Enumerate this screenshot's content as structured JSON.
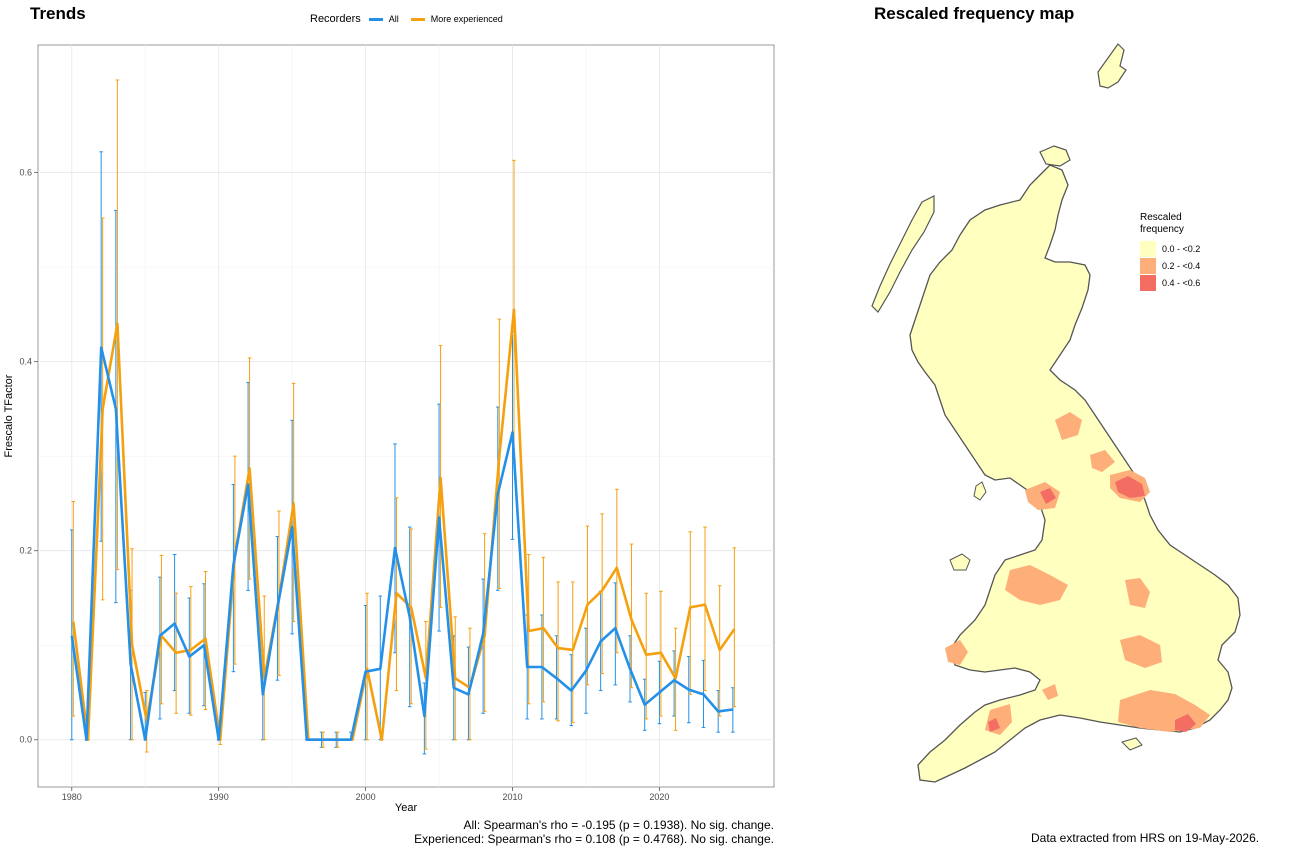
{
  "trends": {
    "title": "Trends",
    "legend_title": "Recorders",
    "caption_line1": "All: Spearman's rho = -0.195 (p = 0.1938). No sig. change.",
    "caption_line2": "Experienced: Spearman's rho = 0.108 (p = 0.4768). No sig. change."
  },
  "map": {
    "title": "Rescaled frequency map",
    "legend_title_line1": "Rescaled",
    "legend_title_line2": "frequency",
    "legend_items": [
      {
        "label": "0.0 - <0.2",
        "color": "#FFFFBF"
      },
      {
        "label": "0.2 - <0.4",
        "color": "#FDAE79"
      },
      {
        "label": "0.4 - <0.6",
        "color": "#F46D63"
      }
    ],
    "caption": "Data extracted from HRS on 19-May-2026."
  },
  "chart_data": {
    "type": "line",
    "xlabel": "Year",
    "ylabel": "Frescalo TFactor",
    "xlim": [
      1977.7,
      2027.8
    ],
    "ylim": [
      -0.05,
      0.735
    ],
    "x_ticks": [
      1980,
      1990,
      2000,
      2010,
      2020
    ],
    "y_ticks": [
      0.0,
      0.2,
      0.4,
      0.6
    ],
    "y_tick_labels": [
      "0.0",
      "0.2",
      "0.4",
      "0.6"
    ],
    "grid": true,
    "legend_position": "top",
    "series": [
      {
        "name": "All",
        "color": "#2490E8",
        "x": [
          1980,
          1981,
          1982,
          1983,
          1984,
          1985,
          1986,
          1987,
          1988,
          1989,
          1990,
          1991,
          1992,
          1993,
          1994,
          1995,
          1996,
          1997,
          1998,
          1999,
          2000,
          2001,
          2002,
          2003,
          2004,
          2005,
          2006,
          2007,
          2008,
          2009,
          2010,
          2011,
          2012,
          2013,
          2014,
          2015,
          2016,
          2017,
          2018,
          2019,
          2020,
          2021,
          2022,
          2023,
          2024,
          2025
        ],
        "y": [
          0.11,
          0.0,
          0.415,
          0.35,
          0.08,
          0.0,
          0.11,
          0.123,
          0.088,
          0.1,
          0.0,
          0.185,
          0.27,
          0.048,
          0.14,
          0.225,
          0.0,
          0.0,
          0.0,
          0.0,
          0.072,
          0.075,
          0.203,
          0.13,
          0.025,
          0.235,
          0.055,
          0.048,
          0.112,
          0.26,
          0.325,
          0.077,
          0.077,
          0.065,
          0.052,
          0.073,
          0.104,
          0.118,
          0.075,
          0.037,
          0.05,
          0.063,
          0.053,
          0.048,
          0.03,
          0.032
        ],
        "y_low": [
          0.0,
          0.0,
          0.21,
          0.145,
          0.0,
          0.0,
          0.022,
          0.052,
          0.028,
          0.036,
          0.0,
          0.072,
          0.158,
          0.0,
          0.063,
          0.112,
          0.0,
          -0.008,
          -0.008,
          0.0,
          0.0,
          0.0,
          0.092,
          0.035,
          -0.015,
          0.115,
          0.0,
          0.0,
          0.028,
          0.158,
          0.212,
          0.022,
          0.022,
          0.022,
          0.015,
          0.028,
          0.052,
          0.058,
          0.04,
          0.01,
          0.017,
          0.025,
          0.018,
          0.013,
          0.008,
          0.008
        ],
        "y_high": [
          0.222,
          0.0,
          0.622,
          0.56,
          0.158,
          0.05,
          0.172,
          0.196,
          0.15,
          0.165,
          0.0,
          0.27,
          0.378,
          0.095,
          0.215,
          0.338,
          0.0,
          0.008,
          0.008,
          0.008,
          0.142,
          0.152,
          0.313,
          0.225,
          0.06,
          0.355,
          0.11,
          0.098,
          0.17,
          0.352,
          0.432,
          0.132,
          0.132,
          0.11,
          0.09,
          0.118,
          0.157,
          0.166,
          0.11,
          0.064,
          0.083,
          0.094,
          0.088,
          0.084,
          0.052,
          0.055
        ]
      },
      {
        "name": "More experienced",
        "color": "#F5A00F",
        "x": [
          1980,
          1981,
          1982,
          1983,
          1984,
          1985,
          1986,
          1987,
          1988,
          1989,
          1990,
          1991,
          1992,
          1993,
          1994,
          1995,
          1996,
          1997,
          1998,
          1999,
          2000,
          2001,
          2002,
          2003,
          2004,
          2005,
          2006,
          2007,
          2008,
          2009,
          2010,
          2011,
          2012,
          2013,
          2014,
          2015,
          2016,
          2017,
          2018,
          2019,
          2020,
          2021,
          2022,
          2023,
          2024,
          2025
        ],
        "y": [
          0.125,
          0.0,
          0.35,
          0.44,
          0.1,
          0.02,
          0.11,
          0.092,
          0.095,
          0.107,
          0.0,
          0.195,
          0.287,
          0.065,
          0.15,
          0.25,
          0.0,
          0.0,
          0.0,
          0.0,
          0.075,
          0.0,
          0.155,
          0.14,
          0.065,
          0.277,
          0.065,
          0.055,
          0.11,
          0.3,
          0.455,
          0.115,
          0.118,
          0.097,
          0.095,
          0.143,
          0.158,
          0.182,
          0.127,
          0.09,
          0.092,
          0.065,
          0.14,
          0.143,
          0.095,
          0.117
        ],
        "y_low": [
          0.025,
          0.0,
          0.148,
          0.18,
          0.0,
          -0.013,
          0.038,
          0.028,
          0.026,
          0.032,
          -0.005,
          0.08,
          0.17,
          0.0,
          0.068,
          0.125,
          0.0,
          -0.008,
          -0.008,
          0.0,
          0.0,
          0.0,
          0.052,
          0.038,
          -0.01,
          0.14,
          0.0,
          0.0,
          0.03,
          0.16,
          0.295,
          0.038,
          0.04,
          0.02,
          0.018,
          0.058,
          0.07,
          0.092,
          0.055,
          0.022,
          0.025,
          0.01,
          0.048,
          0.052,
          0.025,
          0.035
        ],
        "y_high": [
          0.252,
          0.0,
          0.552,
          0.698,
          0.202,
          0.052,
          0.195,
          0.155,
          0.162,
          0.178,
          0.0,
          0.3,
          0.404,
          0.152,
          0.242,
          0.377,
          0.0,
          0.008,
          0.008,
          0.008,
          0.155,
          0.0,
          0.256,
          0.223,
          0.125,
          0.417,
          0.13,
          0.118,
          0.218,
          0.445,
          0.613,
          0.196,
          0.193,
          0.167,
          0.167,
          0.226,
          0.239,
          0.265,
          0.207,
          0.155,
          0.157,
          0.118,
          0.22,
          0.225,
          0.163,
          0.203
        ]
      }
    ]
  }
}
